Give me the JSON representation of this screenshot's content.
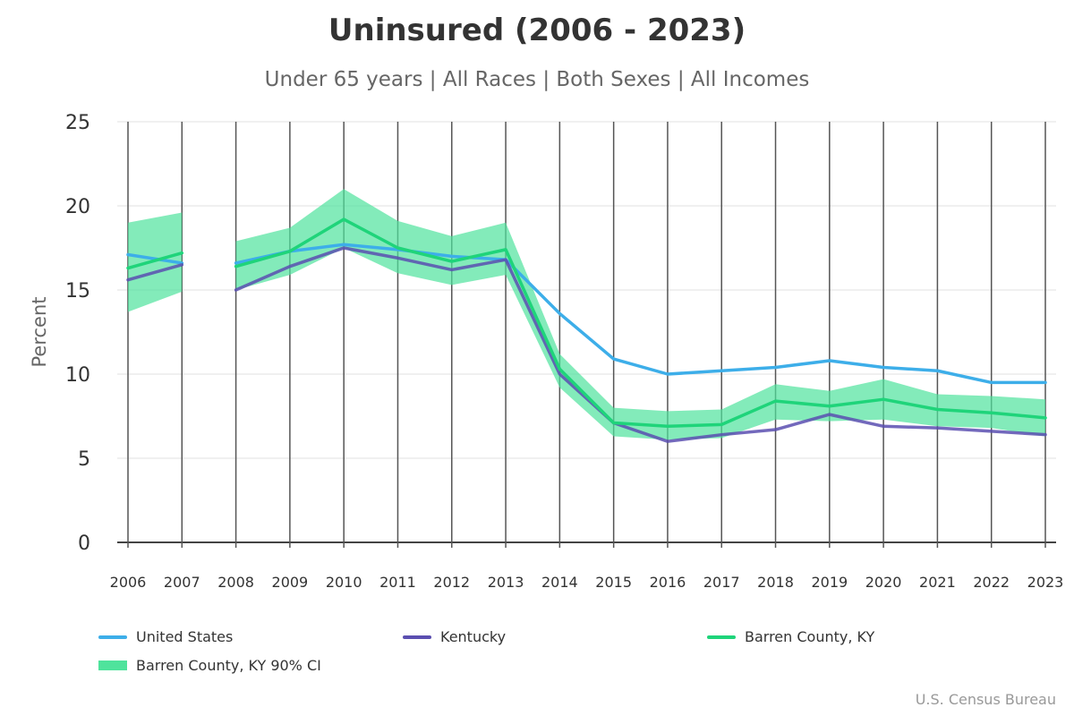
{
  "title": "Uninsured (2006 - 2023)",
  "subtitle": "Under 65 years | All Races | Both Sexes | All Incomes",
  "source": "U.S. Census Bureau",
  "chart_data": {
    "type": "line",
    "title": "Uninsured (2006 - 2023)",
    "subtitle": "Under 65 years | All Races | Both Sexes | All Incomes",
    "ylabel": "Percent",
    "xlabel": "",
    "ylim": [
      0,
      25
    ],
    "yticks": [
      0,
      5,
      10,
      15,
      20,
      25
    ],
    "x": [
      "2006",
      "2007",
      "2008",
      "2009",
      "2010",
      "2011",
      "2012",
      "2013",
      "2014",
      "2015",
      "2016",
      "2017",
      "2018",
      "2019",
      "2020",
      "2021",
      "2022",
      "2023"
    ],
    "grid": "horizontal and vertical",
    "legend_position": "bottom",
    "series": [
      {
        "name": "United States",
        "color": "#3daee9",
        "values": [
          17.1,
          16.6,
          16.6,
          17.3,
          17.7,
          17.4,
          17.0,
          16.8,
          13.6,
          10.9,
          10.0,
          10.2,
          10.4,
          10.8,
          10.4,
          10.2,
          9.5,
          9.5
        ]
      },
      {
        "name": "Kentucky",
        "color": "#5b4fb0",
        "values": [
          15.6,
          16.5,
          15.0,
          16.4,
          17.5,
          16.9,
          16.2,
          16.8,
          10.0,
          7.1,
          6.0,
          6.4,
          6.7,
          7.6,
          6.9,
          6.8,
          6.6,
          6.4
        ]
      },
      {
        "name": "Barren County, KY",
        "color": "#1fd47a",
        "values": [
          16.3,
          17.2,
          16.4,
          17.3,
          19.2,
          17.5,
          16.7,
          17.4,
          10.3,
          7.1,
          6.9,
          7.0,
          8.4,
          8.1,
          8.5,
          7.9,
          7.7,
          7.4
        ]
      }
    ],
    "bands": [
      {
        "name": "Barren County, KY 90% CI",
        "color": "#4fe39c",
        "upper": [
          19.0,
          19.6,
          17.9,
          18.7,
          21.0,
          19.1,
          18.2,
          19.0,
          11.2,
          8.0,
          7.8,
          7.9,
          9.4,
          9.0,
          9.7,
          8.8,
          8.7,
          8.5
        ],
        "lower": [
          13.7,
          14.9,
          15.0,
          15.9,
          17.5,
          16.0,
          15.3,
          15.9,
          9.2,
          6.3,
          6.1,
          6.2,
          7.3,
          7.2,
          7.3,
          6.9,
          6.8,
          6.3
        ]
      }
    ],
    "gaps_after": [
      "2007"
    ]
  }
}
